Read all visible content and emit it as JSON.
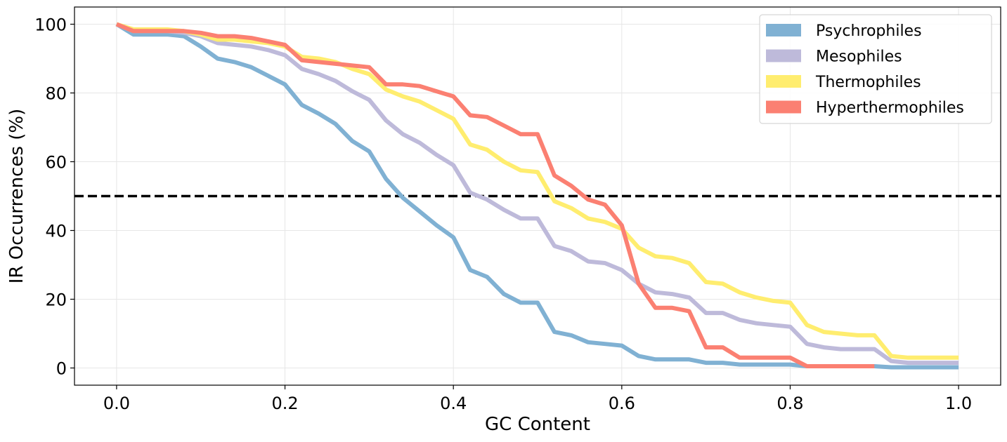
{
  "chart_data": {
    "type": "line",
    "xlabel": "GC Content",
    "ylabel": "IR Occurrences (%)",
    "xlim": [
      -0.05,
      1.05
    ],
    "ylim": [
      -5,
      105
    ],
    "xticks": [
      0.0,
      0.2,
      0.4,
      0.6,
      0.8,
      1.0
    ],
    "xtick_labels": [
      "0.0",
      "0.2",
      "0.4",
      "0.6",
      "0.8",
      "1.0"
    ],
    "yticks": [
      0,
      20,
      40,
      60,
      80,
      100
    ],
    "ytick_labels": [
      "0",
      "20",
      "40",
      "60",
      "80",
      "100"
    ],
    "grid": true,
    "legend_position": "top-right",
    "reference_line": {
      "y": 50,
      "style": "dashed",
      "color": "#000000"
    },
    "x": [
      0.0,
      0.02,
      0.04,
      0.06,
      0.08,
      0.1,
      0.12,
      0.14,
      0.16,
      0.18,
      0.2,
      0.22,
      0.24,
      0.26,
      0.28,
      0.3,
      0.32,
      0.34,
      0.36,
      0.38,
      0.4,
      0.42,
      0.44,
      0.46,
      0.48,
      0.5,
      0.52,
      0.54,
      0.56,
      0.58,
      0.6,
      0.62,
      0.64,
      0.66,
      0.68,
      0.7,
      0.72,
      0.74,
      0.76,
      0.78,
      0.8,
      0.82,
      0.84,
      0.86,
      0.88,
      0.9,
      0.92,
      0.94,
      0.96,
      0.98,
      1.0
    ],
    "series": [
      {
        "name": "Psychrophiles",
        "color": "#80b1d3",
        "values": [
          100,
          97,
          97,
          97,
          96.5,
          93.5,
          90,
          89,
          87.5,
          85,
          82.5,
          76.5,
          74,
          71,
          66,
          63,
          55,
          49.5,
          45.5,
          41.5,
          38,
          28.5,
          26.5,
          21.5,
          19,
          19,
          10.5,
          9.5,
          7.5,
          7,
          6.5,
          3.5,
          2.5,
          2.5,
          2.5,
          1.5,
          1.5,
          1,
          1,
          1,
          1,
          0.5,
          0.5,
          0.5,
          0.5,
          0.5,
          0.2,
          0.2,
          0.2,
          0.2,
          0.2
        ]
      },
      {
        "name": "Mesophiles",
        "color": "#bebada",
        "values": [
          100,
          98,
          98,
          98,
          97.5,
          96.5,
          94.5,
          94,
          93.5,
          92.5,
          91,
          87,
          85.5,
          83.5,
          80.5,
          78,
          72,
          68,
          65.5,
          62,
          59,
          51,
          49,
          46,
          43.5,
          43.5,
          35.5,
          34,
          31,
          30.5,
          28.5,
          24.5,
          22,
          21.5,
          20.5,
          16,
          16,
          14,
          13,
          12.5,
          12,
          7,
          6,
          5.5,
          5.5,
          5.5,
          2,
          1.5,
          1.5,
          1.5,
          1.5
        ]
      },
      {
        "name": "Thermophiles",
        "color": "#ffed6f",
        "values": [
          100,
          98.5,
          98.5,
          98.5,
          98,
          97,
          95.5,
          95.5,
          95,
          94.5,
          93.5,
          90.5,
          90,
          89,
          87,
          85.5,
          81,
          79,
          77.5,
          75,
          72.5,
          65,
          63.5,
          60,
          57.5,
          57,
          48.5,
          46.5,
          43.5,
          42.5,
          40.5,
          35,
          32.5,
          32,
          30.5,
          25,
          24.5,
          22,
          20.5,
          19.5,
          19,
          12.5,
          10.5,
          10,
          9.5,
          9.5,
          3.5,
          3,
          3,
          3,
          3
        ]
      },
      {
        "name": "Hyperthermophiles",
        "color": "#fb8072",
        "values": [
          100,
          98,
          98,
          98,
          98,
          97.5,
          96.5,
          96.5,
          96,
          95,
          94,
          89.5,
          89,
          88.5,
          88,
          87.5,
          82.5,
          82.5,
          82,
          80.5,
          79,
          73.5,
          73,
          70.5,
          68,
          68,
          56,
          53,
          49,
          47.5,
          41.5,
          24.5,
          17.5,
          17.5,
          16.5,
          6,
          6,
          3,
          3,
          3,
          3,
          0.5,
          0.5,
          0.5,
          0.5,
          0.5,
          null,
          null,
          null,
          null,
          null
        ]
      }
    ]
  }
}
